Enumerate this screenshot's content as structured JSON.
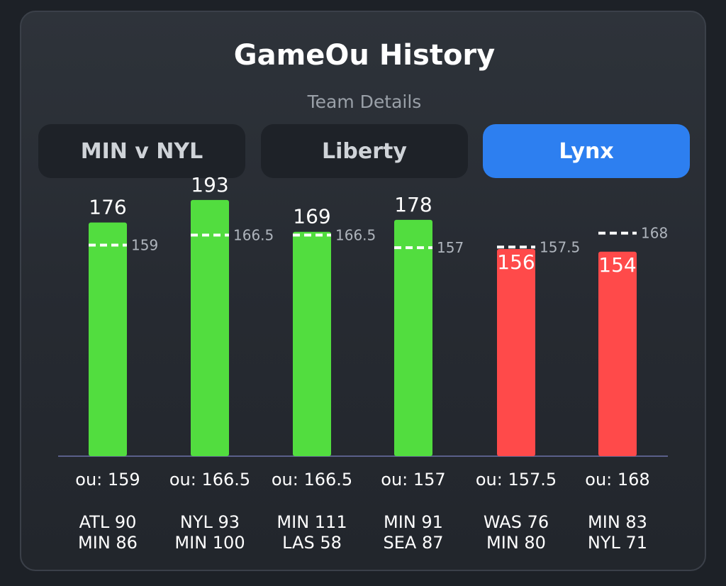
{
  "header": {
    "title": "GameOu History",
    "subtitle": "Team Details"
  },
  "tabs": [
    {
      "label": "MIN v NYL",
      "active": false
    },
    {
      "label": "Liberty",
      "active": false
    },
    {
      "label": "Lynx",
      "active": true
    }
  ],
  "colors": {
    "over": "#52dd3f",
    "under": "#ff4a4a",
    "accent": "#2d7ff0",
    "axis": "#5a5f8a"
  },
  "chart_data": {
    "type": "bar",
    "ylim": [
      0,
      210
    ],
    "categories": [
      "ATL 90 MIN 86",
      "NYL 93 MIN 100",
      "MIN 111 LAS 58",
      "MIN 91 SEA 87",
      "WAS 76 MIN 80",
      "MIN 83 NYL 71"
    ],
    "series": [
      {
        "values": [
          176,
          193,
          169,
          178,
          156,
          154
        ]
      }
    ],
    "lines": [
      159,
      166.5,
      166.5,
      157,
      157.5,
      168
    ],
    "line_labels": [
      "159",
      "166.5",
      "166.5",
      "157",
      "157.5",
      "168"
    ],
    "ou_labels": [
      "ou: 159",
      "ou: 166.5",
      "ou: 166.5",
      "ou: 157",
      "ou: 157.5",
      "ou: 168"
    ],
    "scores": [
      [
        "ATL 90",
        "MIN 86"
      ],
      [
        "NYL 93",
        "MIN 100"
      ],
      [
        "MIN 111",
        "LAS 58"
      ],
      [
        "MIN 91",
        "SEA 87"
      ],
      [
        "WAS 76",
        "MIN 80"
      ],
      [
        "MIN 83",
        "NYL 71"
      ]
    ]
  }
}
